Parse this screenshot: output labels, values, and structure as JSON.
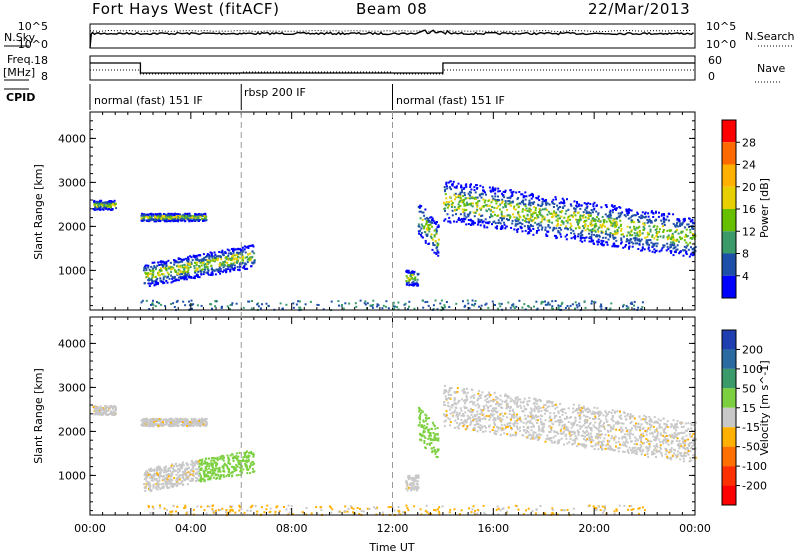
{
  "header": {
    "station": "Fort Hays West (fitACF)",
    "beam": "Beam 08",
    "date": "22/Mar/2013"
  },
  "noise_panel": {
    "left_label": "N.Sky",
    "right_label": "N.Search",
    "tick_top": "10^5",
    "tick_bottom": "10^0"
  },
  "freq_panel": {
    "left_label_1": "Freq.",
    "left_label_2": "[MHz]",
    "right_label": "Nave",
    "left_ticks": [
      "18",
      "8"
    ],
    "right_ticks": [
      "60",
      "0"
    ]
  },
  "cpid_panel": {
    "label": "CPID",
    "segments": [
      {
        "label": "normal (fast) 151 IF",
        "start_hour": 0,
        "end_hour": 6
      },
      {
        "label": "rbsp 200 IF",
        "start_hour": 6,
        "end_hour": 12
      },
      {
        "label": "normal (fast) 151 IF",
        "start_hour": 12,
        "end_hour": 24
      }
    ]
  },
  "chart_data": [
    {
      "type": "heatmap",
      "title": "",
      "ylabel": "Slant Range [km]",
      "xlabel": "",
      "xlim": [
        0,
        24
      ],
      "ylim": [
        100,
        4600
      ],
      "yticks": [
        "1000",
        "2000",
        "3000",
        "4000"
      ],
      "colorbar": {
        "label": "Power [dB]",
        "ticks": [
          "28",
          "24",
          "20",
          "16",
          "12",
          "8",
          "4"
        ],
        "colors": [
          "#ff0000",
          "#ff6a00",
          "#ffb000",
          "#e8d000",
          "#66c000",
          "#3a9a6a",
          "#1e4fa8",
          "#0000ff"
        ]
      },
      "echo_regions": [
        {
          "t0": 0.1,
          "t1": 1.0,
          "r0": 2350,
          "r1": 2650
        },
        {
          "t0": 2.0,
          "t1": 4.6,
          "r0": 2100,
          "r1": 2350
        },
        {
          "t0": 2.1,
          "t1": 6.5,
          "r0": 750,
          "r1": 1500
        },
        {
          "t0": 12.5,
          "t1": 13.0,
          "r0": 600,
          "r1": 1100
        },
        {
          "t0": 13.0,
          "t1": 13.8,
          "r0": 1500,
          "r1": 2600
        },
        {
          "t0": 14.0,
          "t1": 24.0,
          "r0": 1550,
          "r1": 2900
        }
      ]
    },
    {
      "type": "heatmap",
      "title": "",
      "ylabel": "Slant Range [km]",
      "xlabel": "Time UT",
      "xlim": [
        0,
        24
      ],
      "ylim": [
        100,
        4600
      ],
      "yticks": [
        "1000",
        "2000",
        "3000",
        "4000"
      ],
      "xticks": [
        "00:00",
        "04:00",
        "08:00",
        "12:00",
        "16:00",
        "20:00",
        "00:00"
      ],
      "colorbar": {
        "label": "Velocity [m s^-1]",
        "ticks": [
          "200",
          "100",
          "50",
          "15",
          "-15",
          "-50",
          "-100",
          "-200"
        ],
        "colors": [
          "#1f3fb0",
          "#2a6aa0",
          "#3a9a6a",
          "#7cd040",
          "#c8c8c8",
          "#ffb000",
          "#ff7000",
          "#ff3000",
          "#ff0000"
        ]
      },
      "echo_regions": [
        {
          "t0": 0.1,
          "t1": 1.0,
          "r0": 2350,
          "r1": 2650
        },
        {
          "t0": 2.0,
          "t1": 4.6,
          "r0": 2100,
          "r1": 2350
        },
        {
          "t0": 2.1,
          "t1": 6.5,
          "r0": 750,
          "r1": 1500
        },
        {
          "t0": 12.5,
          "t1": 13.0,
          "r0": 600,
          "r1": 1100
        },
        {
          "t0": 13.0,
          "t1": 13.8,
          "r0": 1500,
          "r1": 2600
        },
        {
          "t0": 14.0,
          "t1": 24.0,
          "r0": 1550,
          "r1": 2900
        }
      ]
    }
  ]
}
